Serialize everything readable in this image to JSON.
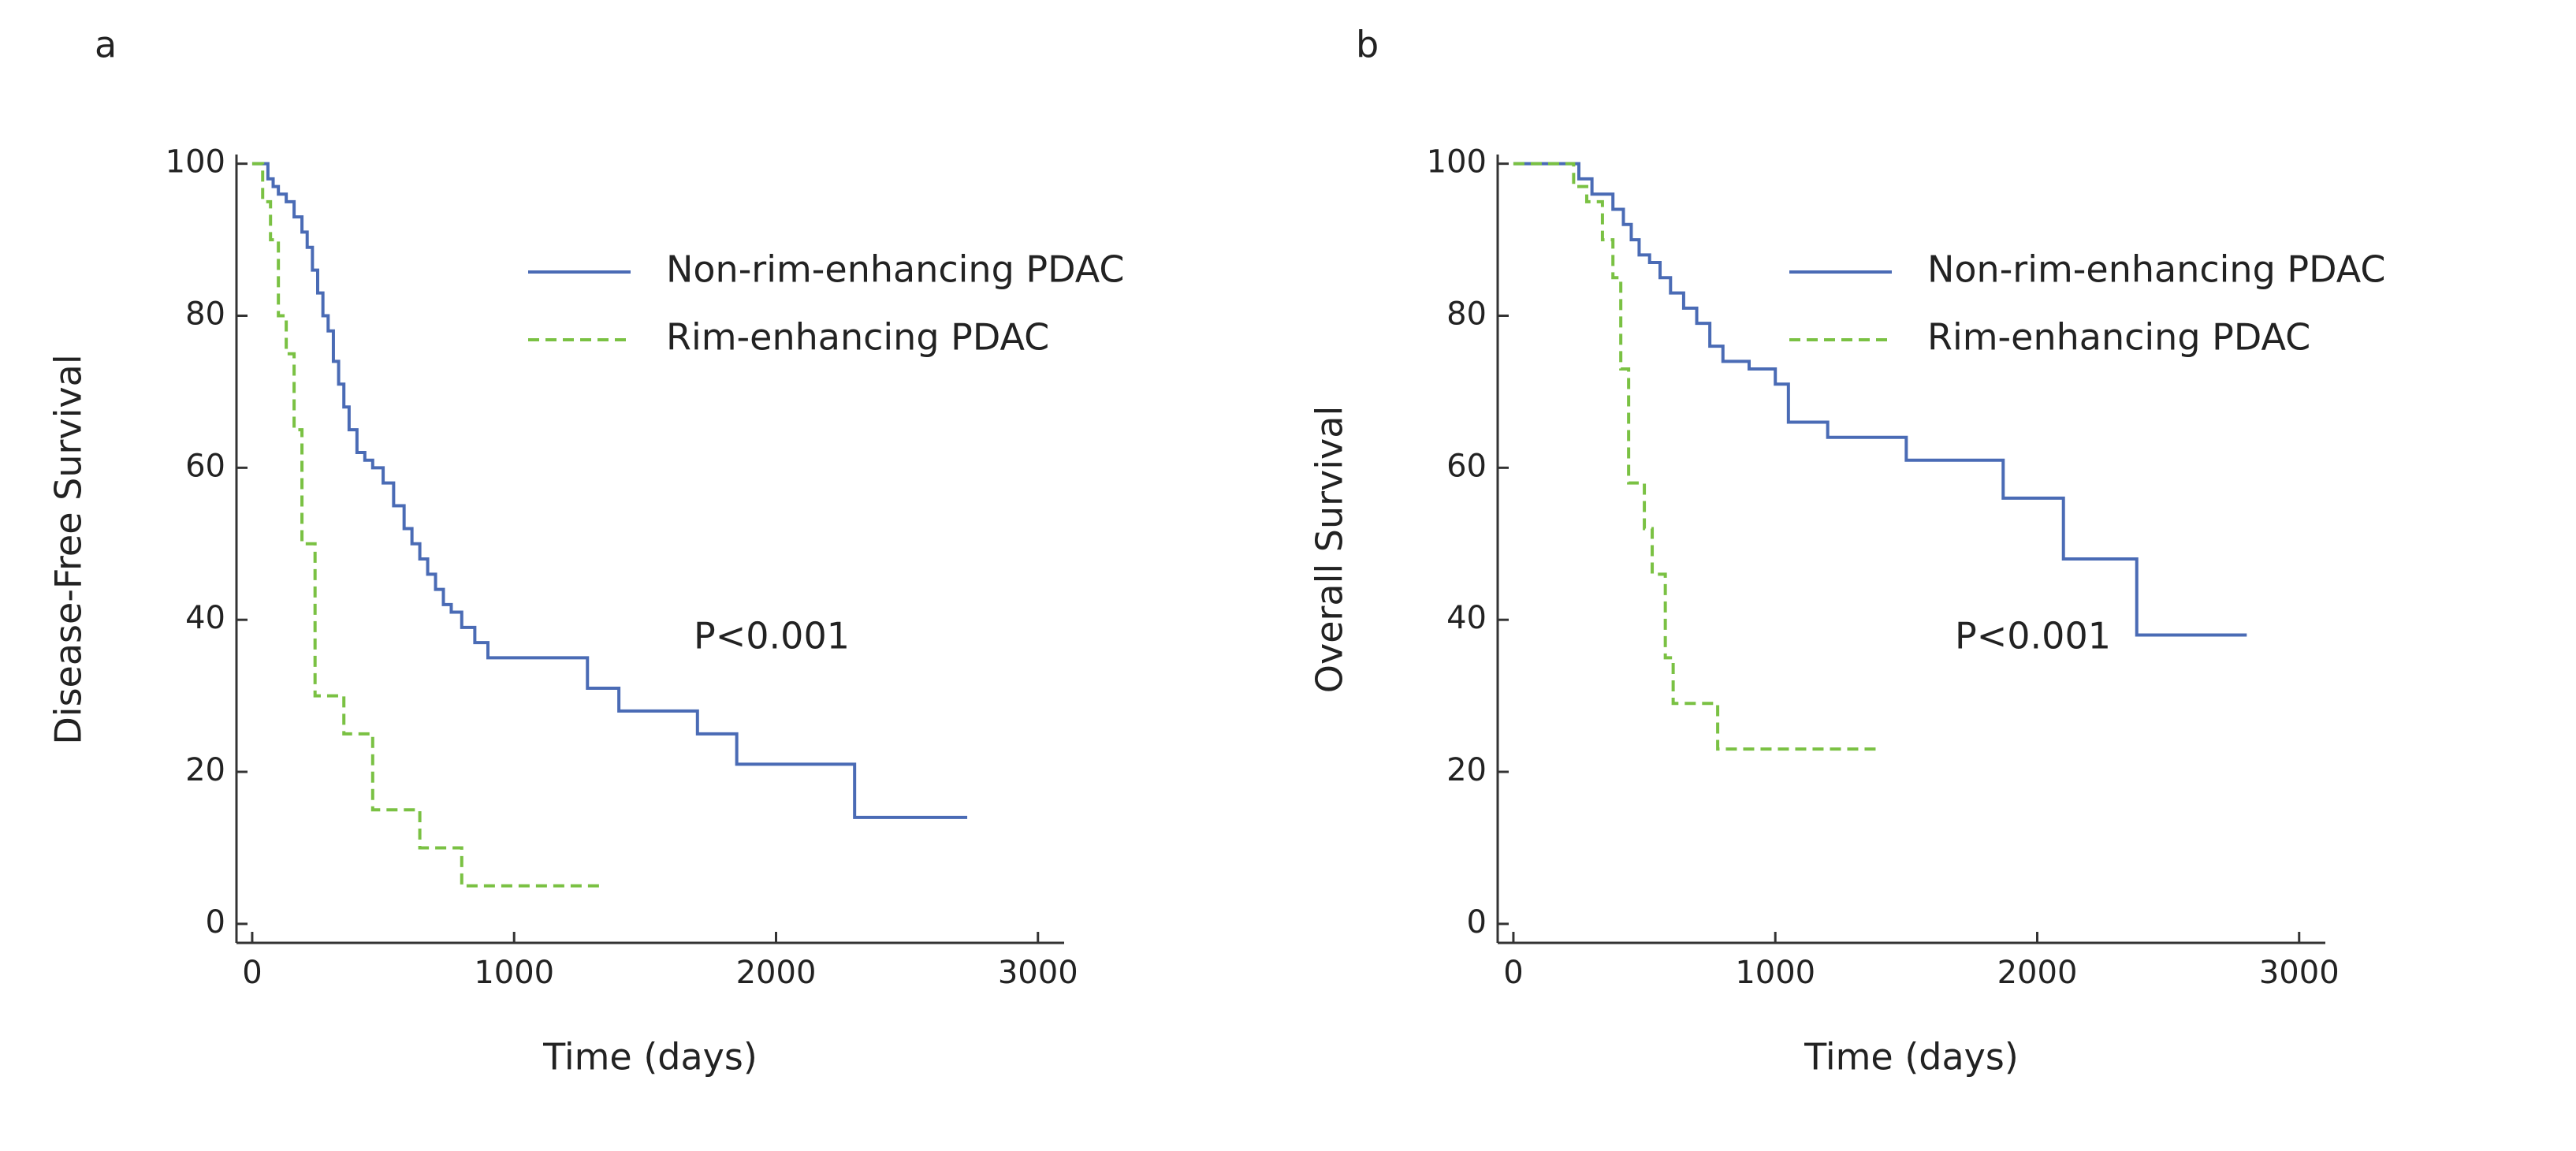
{
  "chart_data": [
    {
      "type": "step",
      "panel": "a",
      "y_label": "Disease-Free Survival",
      "x_label": "Time (days)",
      "annotation": "P<0.001",
      "legend": "upper right",
      "xlim": [
        -60,
        3100
      ],
      "ylim": [
        -2.5,
        101
      ],
      "xticks": [
        0,
        1000,
        2000,
        3000
      ],
      "yticks": [
        0,
        20,
        40,
        60,
        80,
        100
      ],
      "series": [
        {
          "name": "Non-rim-enhancing PDAC",
          "color": "#4a6bb5",
          "dash": false,
          "x": [
            0,
            60,
            80,
            100,
            130,
            160,
            190,
            210,
            230,
            250,
            270,
            290,
            310,
            330,
            350,
            370,
            400,
            430,
            460,
            500,
            540,
            580,
            610,
            640,
            670,
            700,
            730,
            760,
            800,
            850,
            900,
            1280,
            1400,
            1700,
            1850,
            2300,
            2730
          ],
          "values": [
            100,
            98,
            97,
            96,
            95,
            93,
            91,
            89,
            86,
            83,
            80,
            78,
            74,
            71,
            68,
            65,
            62,
            61,
            60,
            58,
            55,
            52,
            50,
            48,
            46,
            44,
            42,
            41,
            39,
            37,
            35,
            31,
            28,
            25,
            21,
            14,
            14
          ]
        },
        {
          "name": "Rim-enhancing PDAC",
          "color": "#7ac143",
          "dash": true,
          "x": [
            0,
            40,
            70,
            100,
            130,
            160,
            190,
            240,
            350,
            460,
            640,
            800,
            1340
          ],
          "values": [
            100,
            95,
            90,
            80,
            75,
            65,
            50,
            30,
            25,
            15,
            10,
            5,
            5
          ]
        }
      ]
    },
    {
      "type": "step",
      "panel": "b",
      "y_label": "Overall Survival",
      "x_label": "Time (days)",
      "annotation": "P<0.001",
      "legend": "upper right",
      "xlim": [
        -60,
        3100
      ],
      "ylim": [
        -2.5,
        101
      ],
      "xticks": [
        0,
        1000,
        2000,
        3000
      ],
      "yticks": [
        0,
        20,
        40,
        60,
        80,
        100
      ],
      "series": [
        {
          "name": "Non-rim-enhancing PDAC",
          "color": "#4a6bb5",
          "dash": false,
          "x": [
            0,
            250,
            300,
            380,
            420,
            450,
            480,
            520,
            560,
            600,
            650,
            700,
            750,
            800,
            900,
            1000,
            1050,
            1200,
            1500,
            1870,
            2100,
            2380,
            2800
          ],
          "values": [
            100,
            98,
            96,
            94,
            92,
            90,
            88,
            87,
            85,
            83,
            81,
            79,
            76,
            74,
            73,
            71,
            66,
            64,
            61,
            56,
            48,
            38,
            38
          ]
        },
        {
          "name": "Rim-enhancing PDAC",
          "color": "#7ac143",
          "dash": true,
          "x": [
            0,
            230,
            280,
            340,
            380,
            410,
            440,
            500,
            530,
            580,
            610,
            780,
            1400
          ],
          "values": [
            100,
            97,
            95,
            90,
            85,
            73,
            58,
            52,
            46,
            35,
            29,
            23,
            23
          ]
        }
      ]
    }
  ]
}
